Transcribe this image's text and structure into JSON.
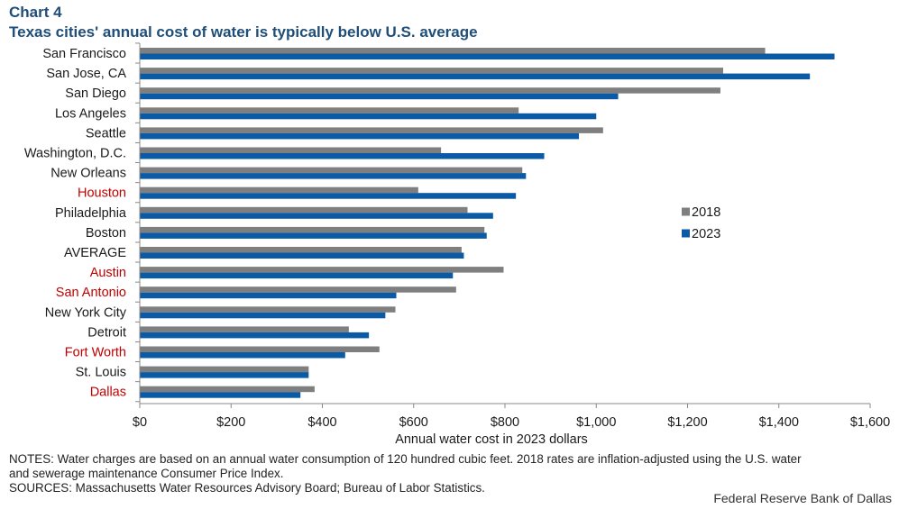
{
  "header": {
    "chart_label": "Chart 4",
    "title": "Texas cities' annual cost of water is typically below U.S. average"
  },
  "chart_data": {
    "type": "bar",
    "orientation": "horizontal",
    "categories": [
      "San Francisco",
      "San Jose, CA",
      "San Diego",
      "Los Angeles",
      "Seattle",
      "Washington, D.C.",
      "New Orleans",
      "Houston",
      "Philadelphia",
      "Boston",
      "AVERAGE",
      "Austin",
      "San Antonio",
      "New York City",
      "Detroit",
      "Fort Worth",
      "St. Louis",
      "Dallas"
    ],
    "highlighted_categories": [
      "Houston",
      "Austin",
      "San Antonio",
      "Fort Worth",
      "Dallas"
    ],
    "series": [
      {
        "name": "2018",
        "color": "#7f7f7f",
        "values": [
          1370,
          1278,
          1272,
          830,
          1015,
          660,
          838,
          610,
          718,
          755,
          705,
          797,
          693,
          560,
          458,
          525,
          370,
          383
        ]
      },
      {
        "name": "2023",
        "color": "#0b5aa6",
        "values": [
          1522,
          1468,
          1048,
          1000,
          962,
          886,
          846,
          824,
          774,
          760,
          710,
          686,
          562,
          538,
          502,
          450,
          370,
          352
        ]
      }
    ],
    "xlabel": "Annual water cost in 2023 dollars",
    "ylabel": "",
    "xlim": [
      0,
      1600
    ],
    "x_ticks": [
      "$0",
      "$200",
      "$400",
      "$600",
      "$800",
      "$1,000",
      "$1,200",
      "$1,400",
      "$1,600"
    ],
    "grid": false,
    "legend_position": "right"
  },
  "colors": {
    "title": "#1f4e79",
    "highlight_label": "#c00000",
    "label": "#1a1a1a"
  },
  "footer": {
    "notes_line1": "NOTES: Water charges are based on an annual water consumption of 120 hundred cubic feet. 2018 rates are inflation-adjusted using the U.S. water",
    "notes_line2": "and sewerage maintenance Consumer Price Index.",
    "sources": "SOURCES: Massachusetts Water Resources Advisory Board; Bureau of Labor Statistics.",
    "credit": "Federal Reserve Bank of Dallas"
  }
}
